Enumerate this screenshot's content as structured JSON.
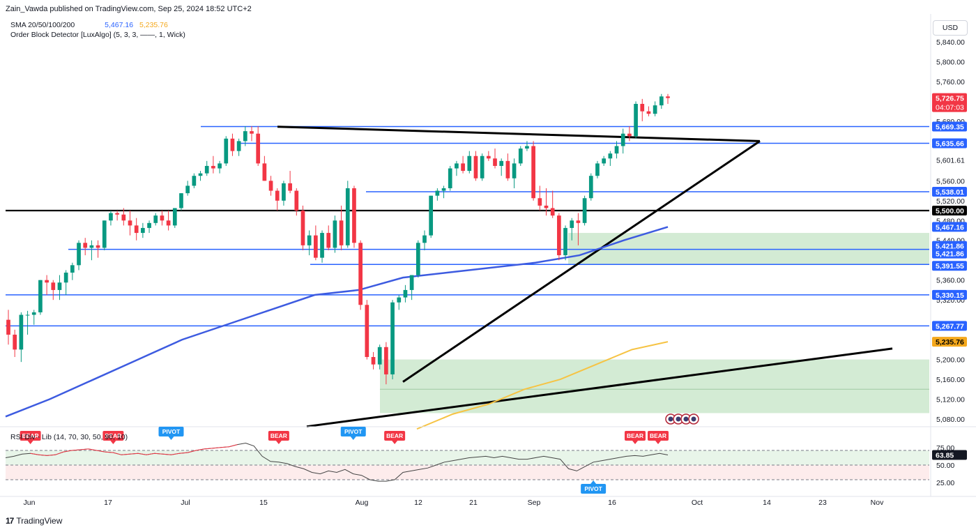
{
  "header": {
    "published": "Zain_Vawda published on TradingView.com, Sep 25, 2024 18:52 UTC+2",
    "sma_label": "SMA 20/50/100/200",
    "sma_value_1": "5,467.16",
    "sma_value_2": "5,235.76",
    "order_block_label": "Order Block Detector [LuxAlgo] (5, 3, 3, ——, 1, Wick)",
    "currency": "USD"
  },
  "rsi_label": "RSI Div - Lib (14, 70, 30, 50, 90, 10)",
  "footer": {
    "brand": "TradingView"
  },
  "colors": {
    "up": "#089981",
    "down": "#f23645",
    "blue": "#2962ff",
    "sma100": "#3d5be0",
    "sma200": "#f4c542",
    "zone": "#a5d6a7"
  },
  "chart_data": {
    "type": "candlestick",
    "symbol_price_last": 5726.75,
    "y_axis": {
      "range": [
        5060,
        5880
      ],
      "ticks": [
        "5,840.00",
        "5,800.00",
        "5,760.00",
        "5,720.00",
        "5,680.00",
        "5,601.61",
        "5,560.00",
        "5,520.00",
        "5,480.00",
        "5,440.00",
        "5,360.00",
        "5,320.00",
        "5,200.00",
        "5,160.00",
        "5,120.00",
        "5,080.00"
      ]
    },
    "x_axis": {
      "ticks": [
        "Jun",
        "17",
        "Jul",
        "15",
        "Aug",
        "12",
        "21",
        "Sep",
        "16",
        "Oct",
        "14",
        "23",
        "Nov"
      ]
    },
    "candles": [
      [
        5280,
        5300,
        5230,
        5250
      ],
      [
        5250,
        5260,
        5205,
        5220
      ],
      [
        5220,
        5295,
        5195,
        5290
      ],
      [
        5290,
        5298,
        5250,
        5290
      ],
      [
        5290,
        5300,
        5270,
        5295
      ],
      [
        5295,
        5360,
        5290,
        5360
      ],
      [
        5360,
        5370,
        5330,
        5355
      ],
      [
        5355,
        5360,
        5320,
        5340
      ],
      [
        5340,
        5370,
        5320,
        5355
      ],
      [
        5355,
        5380,
        5330,
        5375
      ],
      [
        5375,
        5395,
        5360,
        5390
      ],
      [
        5390,
        5440,
        5380,
        5435
      ],
      [
        5435,
        5445,
        5410,
        5425
      ],
      [
        5425,
        5440,
        5400,
        5430
      ],
      [
        5430,
        5440,
        5405,
        5425
      ],
      [
        5425,
        5480,
        5420,
        5480
      ],
      [
        5480,
        5500,
        5470,
        5495
      ],
      [
        5495,
        5500,
        5480,
        5492
      ],
      [
        5492,
        5505,
        5470,
        5480
      ],
      [
        5480,
        5500,
        5450,
        5470
      ],
      [
        5470,
        5485,
        5440,
        5455
      ],
      [
        5455,
        5475,
        5445,
        5465
      ],
      [
        5465,
        5480,
        5455,
        5475
      ],
      [
        5475,
        5495,
        5470,
        5490
      ],
      [
        5490,
        5500,
        5470,
        5480
      ],
      [
        5480,
        5500,
        5460,
        5470
      ],
      [
        5470,
        5505,
        5465,
        5505
      ],
      [
        5505,
        5535,
        5500,
        5535
      ],
      [
        5535,
        5560,
        5530,
        5550
      ],
      [
        5550,
        5575,
        5545,
        5570
      ],
      [
        5570,
        5580,
        5560,
        5575
      ],
      [
        5575,
        5600,
        5570,
        5590
      ],
      [
        5590,
        5610,
        5575,
        5585
      ],
      [
        5585,
        5600,
        5575,
        5595
      ],
      [
        5595,
        5650,
        5590,
        5645
      ],
      [
        5645,
        5655,
        5610,
        5620
      ],
      [
        5620,
        5645,
        5610,
        5640
      ],
      [
        5640,
        5670,
        5630,
        5660
      ],
      [
        5660,
        5670,
        5640,
        5655
      ],
      [
        5655,
        5670,
        5590,
        5595
      ],
      [
        5595,
        5610,
        5560,
        5560
      ],
      [
        5560,
        5570,
        5530,
        5540
      ],
      [
        5540,
        5545,
        5500,
        5520
      ],
      [
        5520,
        5560,
        5510,
        5555
      ],
      [
        5555,
        5580,
        5535,
        5540
      ],
      [
        5540,
        5545,
        5490,
        5500
      ],
      [
        5500,
        5510,
        5420,
        5430
      ],
      [
        5430,
        5460,
        5410,
        5450
      ],
      [
        5450,
        5470,
        5400,
        5405
      ],
      [
        5405,
        5460,
        5395,
        5455
      ],
      [
        5455,
        5470,
        5420,
        5425
      ],
      [
        5425,
        5490,
        5415,
        5480
      ],
      [
        5480,
        5510,
        5420,
        5430
      ],
      [
        5430,
        5560,
        5425,
        5545
      ],
      [
        5545,
        5550,
        5425,
        5435
      ],
      [
        5435,
        5440,
        5300,
        5310
      ],
      [
        5310,
        5320,
        5200,
        5205
      ],
      [
        5205,
        5215,
        5180,
        5190
      ],
      [
        5190,
        5230,
        5180,
        5225
      ],
      [
        5225,
        5235,
        5150,
        5170
      ],
      [
        5170,
        5320,
        5160,
        5315
      ],
      [
        5315,
        5330,
        5300,
        5325
      ],
      [
        5325,
        5350,
        5315,
        5340
      ],
      [
        5340,
        5370,
        5320,
        5370
      ],
      [
        5370,
        5440,
        5365,
        5435
      ],
      [
        5435,
        5460,
        5420,
        5450
      ],
      [
        5450,
        5530,
        5445,
        5530
      ],
      [
        5530,
        5545,
        5520,
        5540
      ],
      [
        5540,
        5550,
        5525,
        5545
      ],
      [
        5545,
        5590,
        5540,
        5585
      ],
      [
        5585,
        5600,
        5570,
        5595
      ],
      [
        5595,
        5610,
        5575,
        5580
      ],
      [
        5580,
        5620,
        5575,
        5610
      ],
      [
        5610,
        5620,
        5560,
        5565
      ],
      [
        5565,
        5615,
        5560,
        5610
      ],
      [
        5610,
        5620,
        5600,
        5605
      ],
      [
        5605,
        5625,
        5585,
        5590
      ],
      [
        5590,
        5605,
        5570,
        5600
      ],
      [
        5600,
        5615,
        5560,
        5565
      ],
      [
        5565,
        5605,
        5545,
        5595
      ],
      [
        5595,
        5630,
        5590,
        5625
      ],
      [
        5625,
        5640,
        5620,
        5630
      ],
      [
        5630,
        5640,
        5520,
        5525
      ],
      [
        5525,
        5550,
        5500,
        5510
      ],
      [
        5510,
        5545,
        5490,
        5505
      ],
      [
        5505,
        5540,
        5485,
        5490
      ],
      [
        5490,
        5495,
        5400,
        5410
      ],
      [
        5410,
        5470,
        5400,
        5465
      ],
      [
        5465,
        5485,
        5440,
        5480
      ],
      [
        5480,
        5495,
        5430,
        5475
      ],
      [
        5475,
        5530,
        5470,
        5525
      ],
      [
        5525,
        5575,
        5520,
        5570
      ],
      [
        5570,
        5600,
        5565,
        5595
      ],
      [
        5595,
        5610,
        5590,
        5605
      ],
      [
        5605,
        5620,
        5590,
        5615
      ],
      [
        5615,
        5640,
        5605,
        5630
      ],
      [
        5630,
        5665,
        5615,
        5655
      ],
      [
        5655,
        5670,
        5640,
        5650
      ],
      [
        5650,
        5720,
        5645,
        5715
      ],
      [
        5715,
        5725,
        5680,
        5700
      ],
      [
        5700,
        5710,
        5690,
        5695
      ],
      [
        5695,
        5720,
        5690,
        5712
      ],
      [
        5712,
        5735,
        5705,
        5730
      ],
      [
        5730,
        5735,
        5715,
        5726.75
      ]
    ],
    "horizontal_levels": [
      {
        "label": "5,669.35",
        "value": 5669.35
      },
      {
        "label": "5,635.66",
        "value": 5635.66
      },
      {
        "label": "5,538.01",
        "value": 5538.01
      },
      {
        "label": "5,500.00",
        "value": 5500.0
      },
      {
        "label": "5,467.16",
        "value": 5467.16
      },
      {
        "label": "5,421.86",
        "value": 5421.86
      },
      {
        "label": "5,421.86",
        "value": 5421.86
      },
      {
        "label": "5,391.55",
        "value": 5391.55
      },
      {
        "label": "5,330.15",
        "value": 5330.15
      },
      {
        "label": "5,267.77",
        "value": 5267.77
      },
      {
        "label": "5,235.76",
        "value": 5235.76
      }
    ],
    "last_price": {
      "label": "5,726.75",
      "countdown": "04:07:03"
    },
    "demand_zones": [
      [
        5391.55,
        5455
      ],
      [
        5092,
        5200
      ]
    ],
    "sma100": [
      5085,
      5120,
      5160,
      5200,
      5240,
      5270,
      5300,
      5330,
      5340,
      5365,
      5375,
      5385,
      5395,
      5410,
      5440,
      5467.16
    ],
    "sma200": [
      5060,
      5090,
      5110,
      5140,
      5160,
      5190,
      5220,
      5235.76
    ],
    "rsi": {
      "ticks": [
        "75.00",
        "50.00",
        "25.00"
      ],
      "last": "63.85",
      "levels": [
        70,
        50,
        30
      ],
      "values": [
        60,
        62,
        65,
        66,
        64,
        63,
        64,
        68,
        70,
        71,
        72,
        70,
        68,
        67,
        64,
        65,
        66,
        64,
        66,
        65,
        64,
        66,
        67,
        70,
        72,
        73,
        74,
        75,
        78,
        80,
        76,
        62,
        55,
        54,
        52,
        48,
        45,
        40,
        38,
        42,
        40,
        44,
        38,
        36,
        30,
        28,
        28,
        30,
        40,
        42,
        44,
        46,
        50,
        54,
        56,
        58,
        60,
        61,
        62,
        60,
        62,
        60,
        58,
        58,
        60,
        62,
        60,
        58,
        45,
        42,
        48,
        54,
        56,
        58,
        60,
        62,
        63,
        62,
        64,
        66,
        63.85
      ],
      "signals": [
        {
          "text": "BEAR",
          "type": "bear",
          "i": 3
        },
        {
          "text": "BEAR",
          "type": "bear",
          "i": 13
        },
        {
          "text": "PIVOT",
          "type": "pivot-top",
          "i": 20
        },
        {
          "text": "BEAR",
          "type": "bear",
          "i": 33
        },
        {
          "text": "PIVOT",
          "type": "pivot-top",
          "i": 42
        },
        {
          "text": "BEAR",
          "type": "bear",
          "i": 47
        },
        {
          "text": "PIVOT",
          "type": "pivot-bottom",
          "i": 71
        },
        {
          "text": "BEAR",
          "type": "bear",
          "i": 116
        },
        {
          "text": "BEAR",
          "type": "bear",
          "i": 120
        }
      ]
    }
  }
}
